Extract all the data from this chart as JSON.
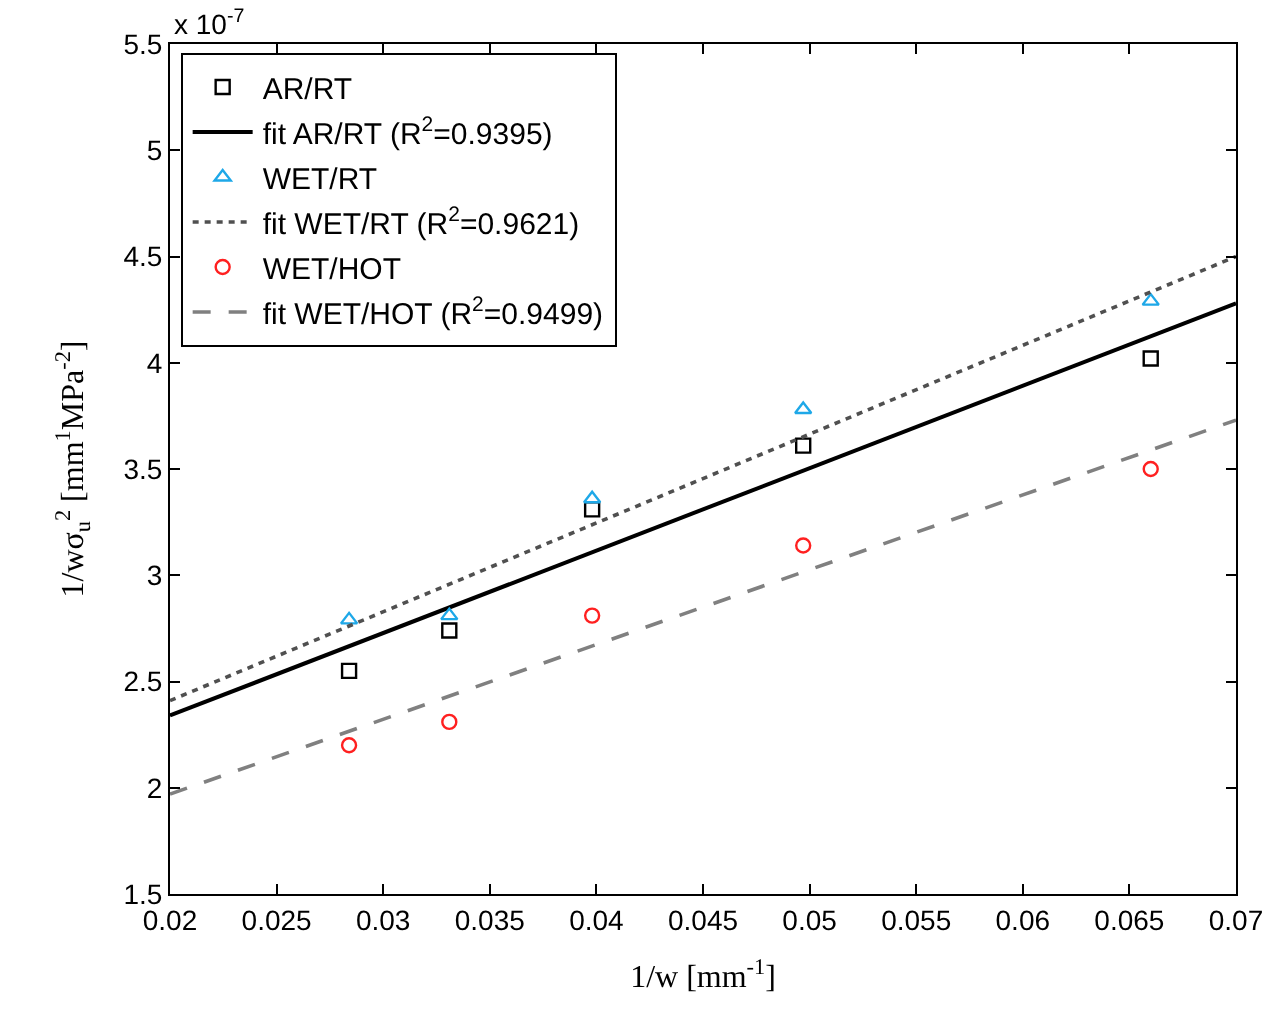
{
  "chart_data": {
    "type": "scatter",
    "xlabel": "1/w [mm$^{-1}$]",
    "ylabel": "1/wσ$_{u}$$^{2}$ [mm$^{1}$MPa$^{-2}$]",
    "annotations": [
      "x 10$^{-7}$"
    ],
    "xlim": [
      0.02,
      0.07
    ],
    "xticks": [
      0.02,
      0.025,
      0.03,
      0.035,
      0.04,
      0.045,
      0.05,
      0.055,
      0.06,
      0.065,
      0.07
    ],
    "ylim": [
      1.5,
      5.5
    ],
    "yticks": [
      1.5,
      2,
      2.5,
      3,
      3.5,
      4,
      4.5,
      5,
      5.5
    ],
    "legend": "top left",
    "series": [
      {
        "name": "AR/RT",
        "marker": "square",
        "color": "#000000",
        "x": [
          0.0284,
          0.0331,
          0.0398,
          0.0497,
          0.066
        ],
        "values": [
          2.55,
          2.74,
          3.31,
          3.61,
          4.02
        ]
      },
      {
        "name": "fit AR/RT (R$^{2}$=0.9395)",
        "type": "line",
        "line_style": "solid",
        "color": "#000000",
        "x": [
          0.02,
          0.07
        ],
        "values": [
          2.34,
          4.28
        ]
      },
      {
        "name": "WET/RT",
        "marker": "triangle",
        "color": "#1ea8e8",
        "x": [
          0.0284,
          0.0331,
          0.0398,
          0.0497,
          0.066
        ],
        "values": [
          2.79,
          2.81,
          3.36,
          3.78,
          4.29
        ]
      },
      {
        "name": "fit WET/RT (R$^{2}$=0.9621)",
        "type": "line",
        "line_style": "dotted",
        "color": "#505050",
        "x": [
          0.02,
          0.07
        ],
        "values": [
          2.41,
          4.5
        ]
      },
      {
        "name": "WET/HOT",
        "marker": "circle",
        "color": "#ff2020",
        "x": [
          0.0284,
          0.0331,
          0.0398,
          0.0497,
          0.066
        ],
        "values": [
          2.2,
          2.31,
          2.81,
          3.14,
          3.5
        ]
      },
      {
        "name": "fit WET/HOT (R$^{2}$=0.9499)",
        "type": "line",
        "line_style": "dashed",
        "color": "#808080",
        "x": [
          0.02,
          0.07
        ],
        "values": [
          1.97,
          3.73
        ]
      }
    ]
  }
}
